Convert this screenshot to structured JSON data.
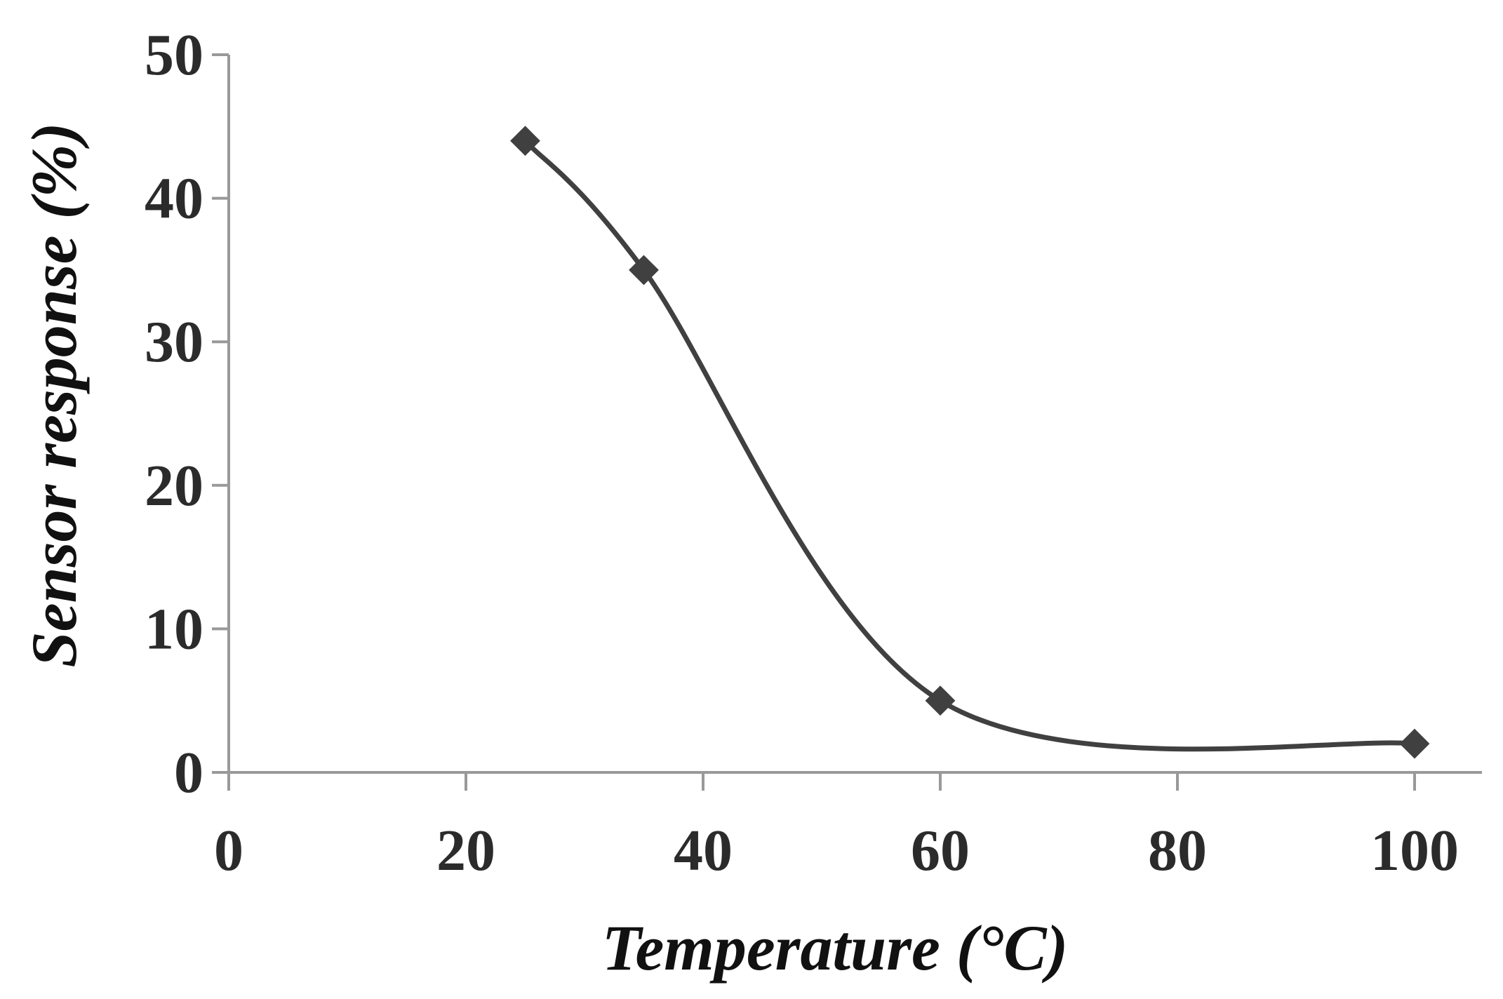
{
  "chart_data": {
    "type": "line",
    "title": "",
    "xlabel": "Temperature (°C)",
    "ylabel": "Sensor response (%)",
    "xlim": [
      0,
      100
    ],
    "ylim": [
      0,
      50
    ],
    "x_ticks": [
      "0",
      "20",
      "40",
      "60",
      "80",
      "100"
    ],
    "y_ticks": [
      "0",
      "10",
      "20",
      "30",
      "40",
      "50"
    ],
    "grid": false,
    "legend": "none",
    "smooth": true,
    "marker": "diamond",
    "series": [
      {
        "x": [
          25,
          35,
          60,
          100
        ],
        "y": [
          44,
          35,
          5,
          2
        ]
      }
    ],
    "colors": {
      "line": "#404040",
      "marker": "#404040",
      "axis": "#999999",
      "tick_text": "#2b2b2b",
      "title_text": "#111111"
    }
  }
}
